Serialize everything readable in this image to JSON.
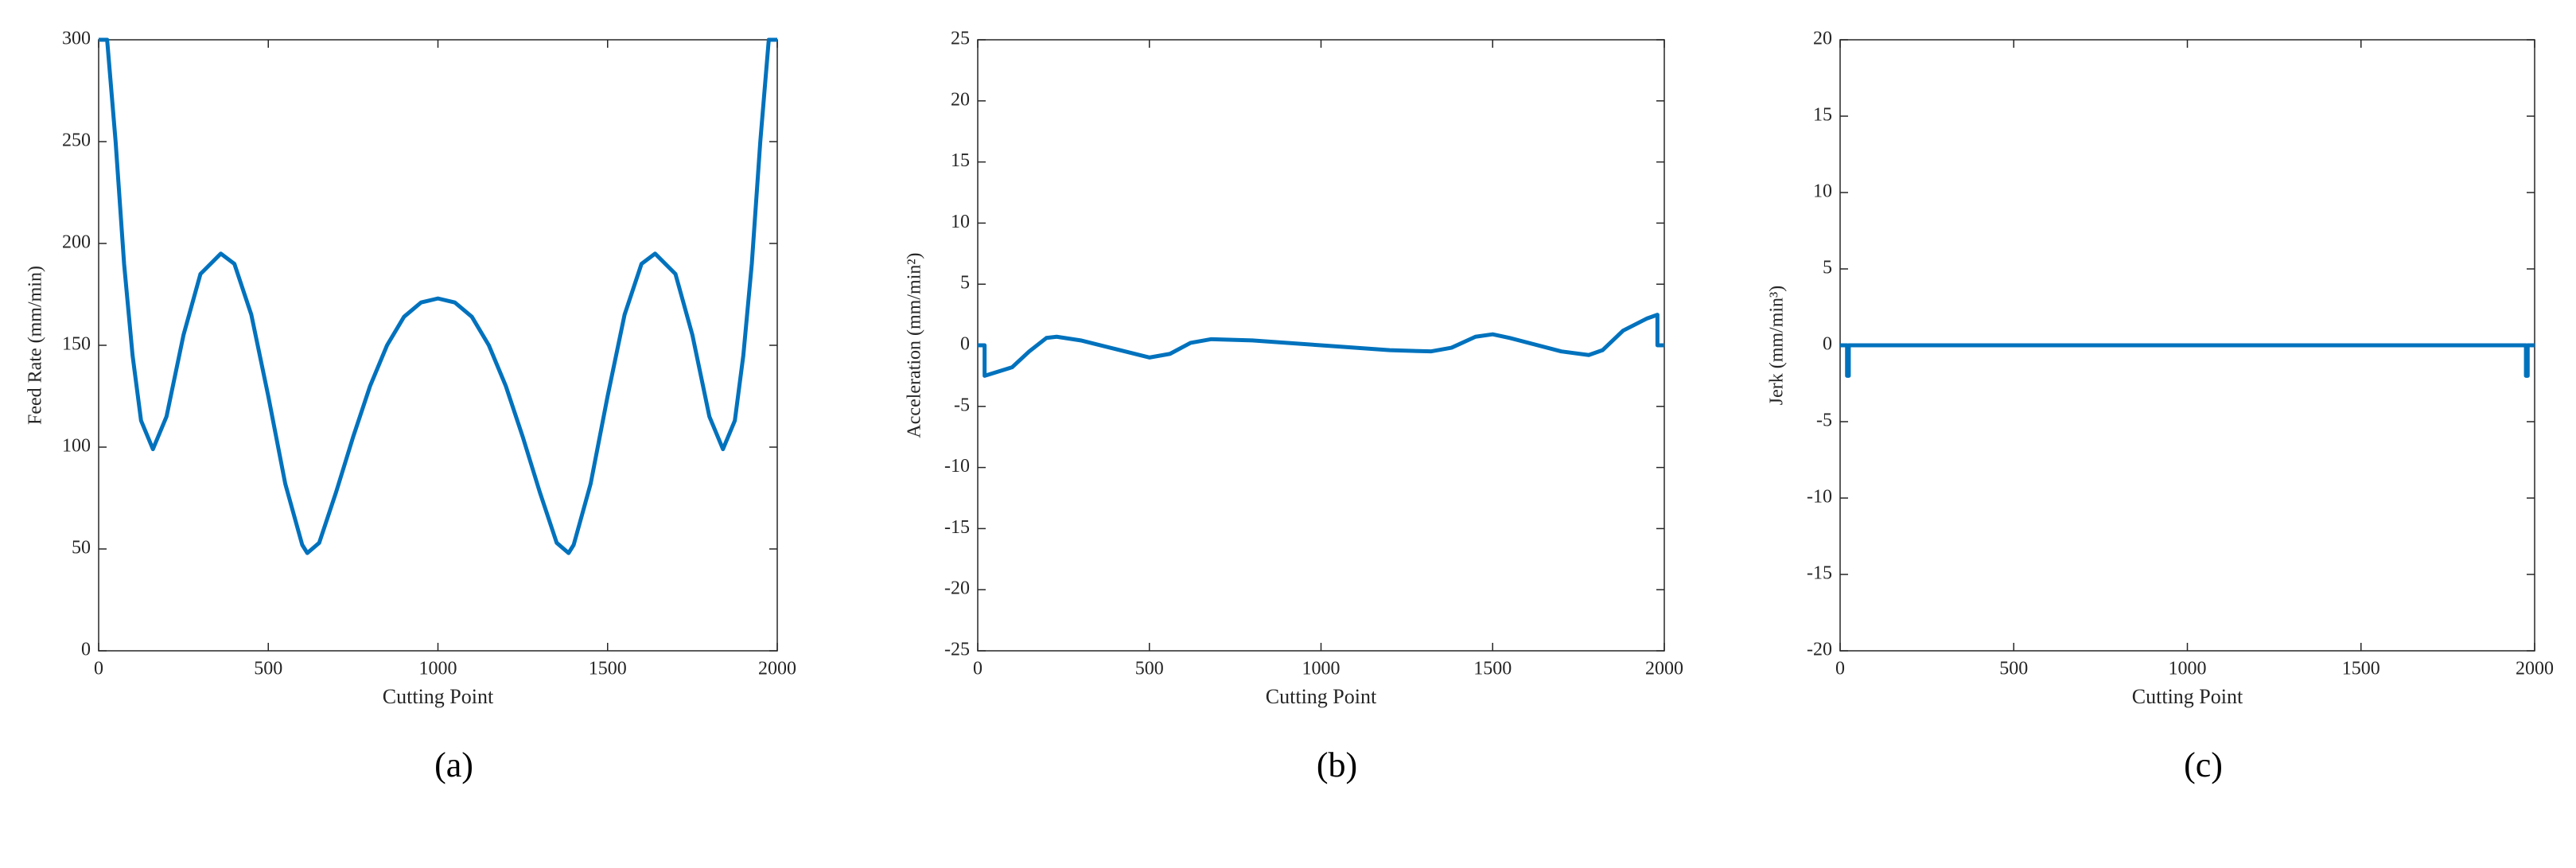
{
  "chart_data": [
    {
      "type": "line",
      "caption": "(a)",
      "xlabel": "Cutting Point",
      "ylabel": "Feed Rate (mm/min)",
      "color": "#0072bd",
      "x": [
        0,
        25,
        50,
        75,
        100,
        125,
        160,
        200,
        250,
        300,
        360,
        400,
        450,
        500,
        550,
        600,
        615,
        650,
        700,
        750,
        800,
        850,
        900,
        950,
        1000,
        1050,
        1100,
        1150,
        1200,
        1250,
        1300,
        1350,
        1385,
        1400,
        1450,
        1500,
        1550,
        1600,
        1640,
        1700,
        1750,
        1800,
        1840,
        1875,
        1900,
        1925,
        1950,
        1975,
        2000
      ],
      "values": [
        300,
        300,
        250,
        190,
        145,
        113,
        99,
        115,
        155,
        185,
        195,
        190,
        165,
        125,
        82,
        52,
        48,
        53,
        78,
        105,
        130,
        150,
        164,
        171,
        173,
        171,
        164,
        150,
        130,
        105,
        78,
        53,
        48,
        52,
        82,
        125,
        165,
        190,
        195,
        185,
        155,
        115,
        99,
        113,
        145,
        190,
        250,
        300,
        300
      ],
      "xlim": [
        0,
        2000
      ],
      "xticks": [
        0,
        500,
        1000,
        1500,
        2000
      ],
      "ylim": [
        0,
        300
      ],
      "yticks": [
        0,
        50,
        100,
        150,
        200,
        250,
        300
      ]
    },
    {
      "type": "line",
      "caption": "(b)",
      "xlabel": "Cutting Point",
      "ylabel": "Acceleration (mm/min²)",
      "color": "#0072bd",
      "x": [
        0,
        20,
        20,
        100,
        150,
        200,
        230,
        300,
        400,
        500,
        560,
        620,
        680,
        800,
        1000,
        1200,
        1320,
        1380,
        1450,
        1500,
        1550,
        1700,
        1780,
        1820,
        1880,
        1950,
        1980,
        1980,
        2000
      ],
      "values": [
        0,
        0,
        -2.5,
        -1.8,
        -0.5,
        0.6,
        0.7,
        0.4,
        -0.3,
        -1.0,
        -0.7,
        0.2,
        0.5,
        0.4,
        0,
        -0.4,
        -0.5,
        -0.2,
        0.7,
        0.9,
        0.6,
        -0.5,
        -0.8,
        -0.4,
        1.2,
        2.2,
        2.5,
        0,
        0
      ],
      "xlim": [
        0,
        2000
      ],
      "xticks": [
        0,
        500,
        1000,
        1500,
        2000
      ],
      "ylim": [
        -25,
        25
      ],
      "yticks": [
        -25,
        -20,
        -15,
        -10,
        -5,
        0,
        5,
        10,
        15,
        20,
        25
      ]
    },
    {
      "type": "line",
      "caption": "(c)",
      "xlabel": "Cutting Point",
      "ylabel": "Jerk (mm/min³)",
      "color": "#0072bd",
      "x": [
        0,
        20,
        20,
        25,
        25,
        1000,
        1975,
        1975,
        1980,
        1980,
        2000
      ],
      "values": [
        0,
        0,
        -2,
        -2,
        0,
        0,
        0,
        -2,
        -2,
        0,
        0
      ],
      "xlim": [
        0,
        2000
      ],
      "xticks": [
        0,
        500,
        1000,
        1500,
        2000
      ],
      "ylim": [
        -20,
        20
      ],
      "yticks": [
        -20,
        -15,
        -10,
        -5,
        0,
        5,
        10,
        15,
        20
      ]
    }
  ]
}
